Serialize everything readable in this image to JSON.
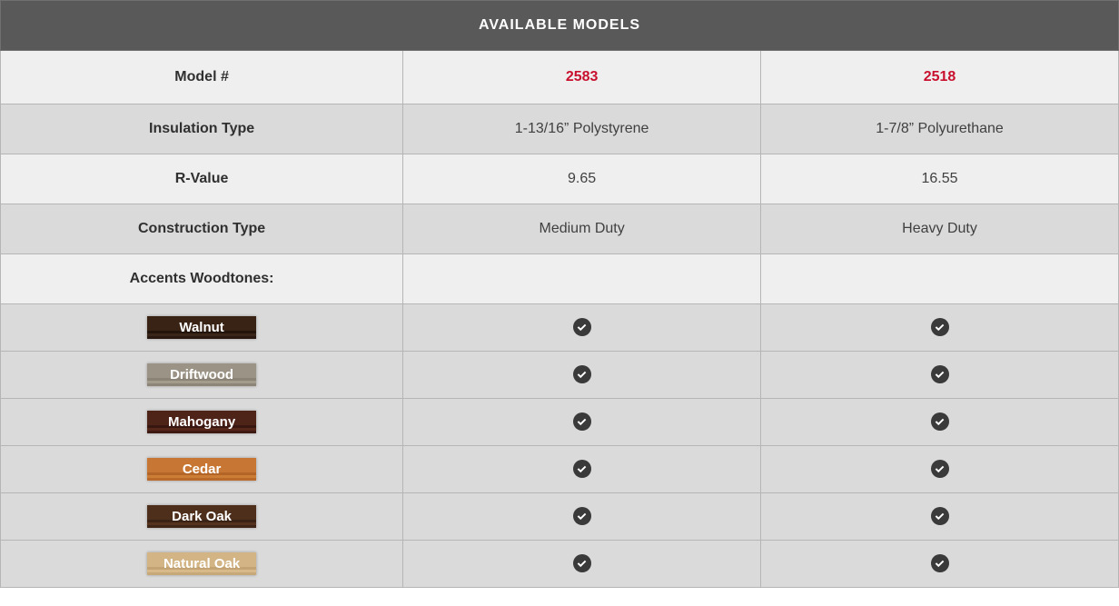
{
  "table": {
    "title": "AVAILABLE MODELS",
    "header": {
      "label": "Model #",
      "model_a": "2583",
      "model_b": "2518",
      "model_link_color": "#c8102e"
    },
    "specs": [
      {
        "label": "Insulation Type",
        "a": "1-13/16” Polystyrene",
        "b": "1-7/8” Polyurethane",
        "bg": "alt"
      },
      {
        "label": "R-Value",
        "a": "9.65",
        "b": "16.55",
        "bg": "plain"
      },
      {
        "label": "Construction Type",
        "a": "Medium Duty",
        "b": "Heavy Duty",
        "bg": "alt"
      }
    ],
    "woodtones_section_label": "Accents Woodtones:",
    "woodtones": [
      {
        "name": "Walnut",
        "bg_css": "linear-gradient(0deg,#2a1910,#2a1910 3px,#3a2618 3px,#3a2618 6px,#24150c 6px,#24150c 9px,#382315 9px)",
        "a": true,
        "b": true
      },
      {
        "name": "Driftwood",
        "bg_css": "linear-gradient(0deg,#8c8578,#8c8578 3px,#a39b8c 3px,#a39b8c 6px,#8a8376 6px,#8a8376 9px,#9b9486 9px)",
        "a": true,
        "b": true
      },
      {
        "name": "Mahogany",
        "bg_css": "linear-gradient(0deg,#3e1a12,#3e1a12 3px,#55261a 3px,#55261a 6px,#381710 6px,#381710 9px,#4e2318 9px)",
        "a": true,
        "b": true
      },
      {
        "name": "Cedar",
        "bg_css": "linear-gradient(0deg,#b96a2a,#b96a2a 3px,#cc7d36 3px,#cc7d36 6px,#b36528 6px,#b36528 9px,#c77733 9px)",
        "a": true,
        "b": true
      },
      {
        "name": "Dark Oak",
        "bg_css": "linear-gradient(0deg,#3f2516,#3f2516 3px,#55321e 3px,#55321e 6px,#3a2214 6px,#3a2214 9px,#4e2f1c 9px)",
        "a": true,
        "b": true
      },
      {
        "name": "Natural Oak",
        "bg_css": "linear-gradient(0deg,#c7a878,#c7a878 3px,#d8ba8a 3px,#d8ba8a 6px,#c3a373 6px,#c3a373 9px,#d2b485 9px)",
        "a": true,
        "b": true
      }
    ],
    "row_bg": {
      "alt": "#dadada",
      "plain": "#efefef"
    }
  },
  "styles": {
    "title_bg": "#595959",
    "title_color": "#ffffff",
    "border_color": "#b5b5b5",
    "text_color": "#404040",
    "label_color": "#303030",
    "check_bg": "#3a3a3a",
    "check_fg": "#ffffff"
  }
}
